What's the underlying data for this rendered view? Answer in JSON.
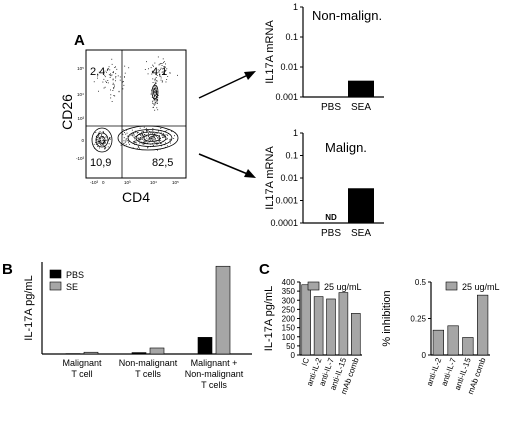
{
  "panels": {
    "a_label": "A",
    "b_label": "B",
    "c_label": "C"
  },
  "flow": {
    "xlabel": "CD4",
    "ylabel": "CD26",
    "quadrants": {
      "ul": "2,4",
      "ur": "4,1",
      "ll": "10,9",
      "lr": "82,5"
    },
    "x_ticks": [
      "-10³",
      "0",
      "10³",
      "10⁴",
      "10⁵"
    ],
    "y_ticks": [
      "10⁵",
      "10⁴",
      "10³",
      "0",
      "-10³"
    ]
  },
  "chart_data": [
    {
      "type": "bar",
      "id": "a_top",
      "title": "Non-malign.",
      "ylabel": "IL17A mRNA",
      "scale": "log",
      "ylim": [
        0.001,
        1
      ],
      "yticks": [
        "1",
        "0.1",
        "0.01",
        "0.001"
      ],
      "categories": [
        "PBS",
        "SEA"
      ],
      "values": [
        0,
        0.0035
      ],
      "bar_color": "#000000"
    },
    {
      "type": "bar",
      "id": "a_bottom",
      "title": "Malign.",
      "ylabel": "IL17A mRNA",
      "scale": "log",
      "ylim": [
        0.0001,
        1
      ],
      "yticks": [
        "1",
        "0.1",
        "0.01",
        "0.001",
        "0.0001"
      ],
      "categories": [
        "PBS",
        "SEA"
      ],
      "values": [
        null,
        0.0035
      ],
      "annotation": "ND",
      "bar_color": "#000000"
    },
    {
      "type": "bar",
      "id": "b",
      "ylabel": "IL-17A pg/mL",
      "ylim": [
        0,
        260
      ],
      "grid": false,
      "legend_position": "top-left",
      "categories": [
        [
          "Malignant",
          "T cell"
        ],
        [
          "Non-malignant",
          "T cells"
        ],
        [
          "Malignant +",
          "Non-malignant",
          "T cells"
        ]
      ],
      "series": [
        {
          "name": "PBS",
          "color": "#000000",
          "values": [
            1,
            4,
            47
          ]
        },
        {
          "name": "SE",
          "color": "#a6a6a6",
          "values": [
            5,
            17,
            248
          ]
        }
      ]
    },
    {
      "type": "bar",
      "id": "c_left",
      "ylabel": "IL-17A pg/mL",
      "ylim": [
        0,
        400
      ],
      "yticks": [
        "0",
        "50",
        "100",
        "150",
        "200",
        "250",
        "300",
        "350",
        "400"
      ],
      "legend": "25 ug/mL",
      "categories": [
        "IC",
        "anti-IL-2",
        "anti-IL-7",
        "anti-IL-15",
        "mAb comb"
      ],
      "values": [
        385,
        320,
        307,
        342,
        228
      ],
      "bar_color": "#a6a6a6"
    },
    {
      "type": "bar",
      "id": "c_right",
      "ylabel": "% inhibition",
      "ylim": [
        0,
        0.5
      ],
      "yticks": [
        "0",
        "0.25",
        "0.5"
      ],
      "legend": "25 ug/mL",
      "categories": [
        "anti-IL-2",
        "anti-IL-7",
        "anti-IL-15",
        "mAb comb"
      ],
      "values": [
        0.17,
        0.2,
        0.12,
        0.41
      ],
      "bar_color": "#a6a6a6"
    }
  ]
}
